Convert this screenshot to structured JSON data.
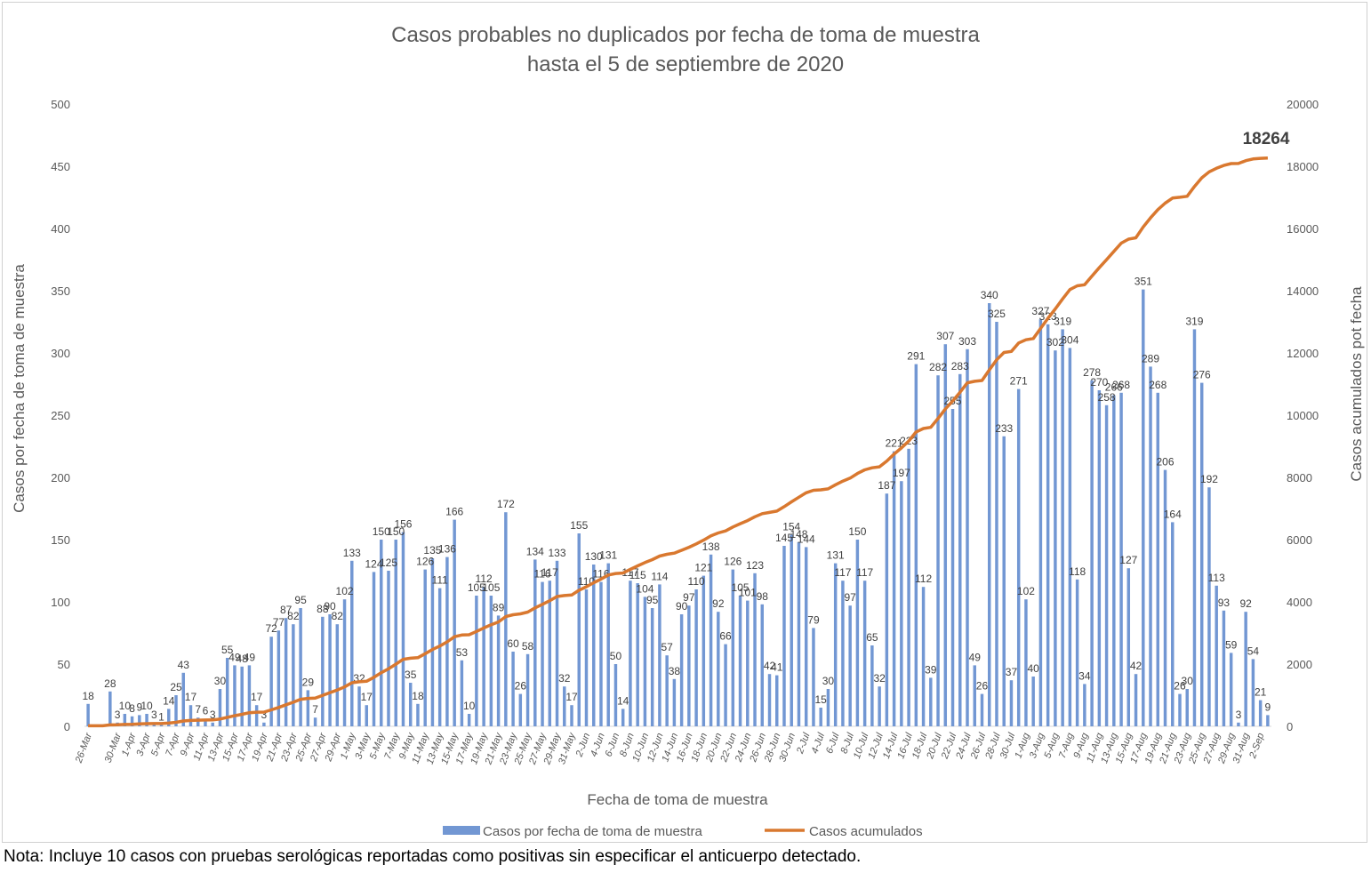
{
  "chart_data": {
    "type": "bar+line",
    "title": [
      "Casos probables no duplicados por fecha de toma de muestra",
      "hasta el 5 de septiembre de 2020"
    ],
    "xlabel": "Fecha de toma de muestra",
    "ylabel": "Casos por fecha de toma de muestra",
    "y2label": "Casos acumulados pot fecha",
    "ylim": [
      0,
      500
    ],
    "y2lim": [
      0,
      20000
    ],
    "yticks": [
      0,
      50,
      100,
      150,
      200,
      250,
      300,
      350,
      400,
      450,
      500
    ],
    "y2ticks": [
      0,
      2000,
      4000,
      6000,
      8000,
      10000,
      12000,
      14000,
      16000,
      18000,
      20000
    ],
    "grid": false,
    "legend_position": "bottom",
    "colors": {
      "bars": "#7297d3",
      "line": "#d9782f"
    },
    "categories": [
      "26-Mar",
      "27-Mar",
      "28-Mar",
      "29-Mar",
      "30-Mar",
      "31-Mar",
      "1-Apr",
      "2-Apr",
      "3-Apr",
      "4-Apr",
      "5-Apr",
      "6-Apr",
      "7-Apr",
      "8-Apr",
      "9-Apr",
      "10-Apr",
      "11-Apr",
      "12-Apr",
      "13-Apr",
      "14-Apr",
      "15-Apr",
      "16-Apr",
      "17-Apr",
      "18-Apr",
      "19-Apr",
      "20-Apr",
      "21-Apr",
      "22-Apr",
      "23-Apr",
      "24-Apr",
      "25-Apr",
      "26-Apr",
      "27-Apr",
      "28-Apr",
      "29-Apr",
      "30-Apr",
      "1-May",
      "2-May",
      "3-May",
      "4-May",
      "5-May",
      "6-May",
      "7-May",
      "8-May",
      "9-May",
      "10-May",
      "11-May",
      "12-May",
      "13-May",
      "14-May",
      "15-May",
      "16-May",
      "17-May",
      "18-May",
      "19-May",
      "20-May",
      "21-May",
      "22-May",
      "23-May",
      "24-May",
      "25-May",
      "26-May",
      "27-May",
      "28-May",
      "29-May",
      "30-May",
      "31-May",
      "1-Jun",
      "2-Jun",
      "3-Jun",
      "4-Jun",
      "5-Jun",
      "6-Jun",
      "7-Jun",
      "8-Jun",
      "9-Jun",
      "10-Jun",
      "11-Jun",
      "12-Jun",
      "13-Jun",
      "14-Jun",
      "15-Jun",
      "16-Jun",
      "17-Jun",
      "18-Jun",
      "19-Jun",
      "20-Jun",
      "21-Jun",
      "22-Jun",
      "23-Jun",
      "24-Jun",
      "25-Jun",
      "26-Jun",
      "27-Jun",
      "28-Jun",
      "29-Jun",
      "30-Jun",
      "1-Jul",
      "2-Jul",
      "3-Jul",
      "4-Jul",
      "5-Jul",
      "6-Jul",
      "7-Jul",
      "8-Jul",
      "9-Jul",
      "10-Jul",
      "11-Jul",
      "12-Jul",
      "13-Jul",
      "14-Jul",
      "15-Jul",
      "16-Jul",
      "17-Jul",
      "18-Jul",
      "19-Jul",
      "20-Jul",
      "21-Jul",
      "22-Jul",
      "23-Jul",
      "24-Jul",
      "25-Jul",
      "26-Jul",
      "27-Jul",
      "28-Jul",
      "29-Jul",
      "30-Jul",
      "31-Jul",
      "1-Aug",
      "2-Aug",
      "3-Aug",
      "4-Aug",
      "5-Aug",
      "6-Aug",
      "7-Aug",
      "8-Aug",
      "9-Aug",
      "10-Aug",
      "11-Aug",
      "12-Aug",
      "13-Aug",
      "14-Aug",
      "15-Aug",
      "16-Aug",
      "17-Aug",
      "18-Aug",
      "19-Aug",
      "20-Aug",
      "21-Aug",
      "22-Aug",
      "23-Aug",
      "24-Aug",
      "25-Aug",
      "26-Aug",
      "27-Aug",
      "28-Aug",
      "29-Aug",
      "30-Aug",
      "31-Aug",
      "1-Sep",
      "2-Sep",
      "3-Sep"
    ],
    "x_tick_labels": [
      "26-Mar",
      "30-Mar",
      "1-Apr",
      "3-Apr",
      "5-Apr",
      "7-Apr",
      "9-Apr",
      "11-Apr",
      "13-Apr",
      "15-Apr",
      "17-Apr",
      "19-Apr",
      "21-Apr",
      "23-Apr",
      "25-Apr",
      "27-Apr",
      "29-Apr",
      "1-May",
      "3-May",
      "5-May",
      "7-May",
      "9-May",
      "11-May",
      "13-May",
      "15-May",
      "17-May",
      "19-May",
      "21-May",
      "23-May",
      "25-May",
      "27-May",
      "29-May",
      "31-May",
      "2-Jun",
      "4-Jun",
      "6-Jun",
      "8-Jun",
      "10-Jun",
      "12-Jun",
      "14-Jun",
      "16-Jun",
      "18-Jun",
      "20-Jun",
      "22-Jun",
      "24-Jun",
      "26-Jun",
      "28-Jun",
      "30-Jun",
      "2-Jul",
      "4-Jul",
      "6-Jul",
      "8-Jul",
      "10-Jul",
      "12-Jul",
      "14-Jul",
      "16-Jul",
      "18-Jul",
      "20-Jul",
      "22-Jul",
      "24-Jul",
      "26-Jul",
      "28-Jul",
      "30-Jul",
      "1-Aug",
      "3-Aug",
      "5-Aug",
      "7-Aug",
      "9-Aug",
      "11-Aug",
      "13-Aug",
      "15-Aug",
      "17-Aug",
      "19-Aug",
      "21-Aug",
      "23-Aug",
      "25-Aug",
      "27-Aug",
      "29-Aug",
      "31-Aug",
      "2-Sep"
    ],
    "series": [
      {
        "name": "Casos por fecha de toma de muestra",
        "type": "bar",
        "axis": "left",
        "values": [
          18,
          0,
          0,
          28,
          3,
          10,
          8,
          9,
          10,
          3,
          1,
          14,
          25,
          43,
          17,
          7,
          6,
          3,
          30,
          55,
          49,
          48,
          49,
          17,
          3,
          72,
          77,
          87,
          82,
          95,
          29,
          7,
          88,
          90,
          82,
          102,
          133,
          32,
          17,
          124,
          150,
          125,
          150,
          156,
          35,
          18,
          126,
          135,
          111,
          136,
          166,
          53,
          10,
          105,
          112,
          105,
          89,
          172,
          60,
          26,
          58,
          134,
          116,
          117,
          133,
          32,
          17,
          155,
          110,
          130,
          116,
          131,
          50,
          14,
          117,
          115,
          104,
          95,
          114,
          57,
          38,
          90,
          97,
          110,
          121,
          138,
          92,
          66,
          126,
          105,
          101,
          123,
          98,
          42,
          41,
          145,
          154,
          148,
          144,
          79,
          15,
          30,
          131,
          117,
          97,
          150,
          117,
          65,
          32,
          187,
          221,
          197,
          223,
          291,
          112,
          39,
          282,
          307,
          255,
          283,
          303,
          49,
          26,
          340,
          325,
          233,
          37,
          271,
          102,
          40,
          327,
          323,
          302,
          319,
          304,
          118,
          34,
          278,
          270,
          258,
          266,
          268,
          127,
          42,
          351,
          289,
          268,
          206,
          164,
          26,
          30,
          319,
          276,
          192,
          113,
          93,
          59,
          3,
          92,
          54,
          21,
          9
        ]
      },
      {
        "name": "Casos acumulados",
        "type": "line",
        "axis": "right",
        "final_value_label": "18264"
      }
    ]
  },
  "note": "Nota: Incluye 10 casos con pruebas serológicas reportadas como positivas sin especificar el anticuerpo detectado."
}
